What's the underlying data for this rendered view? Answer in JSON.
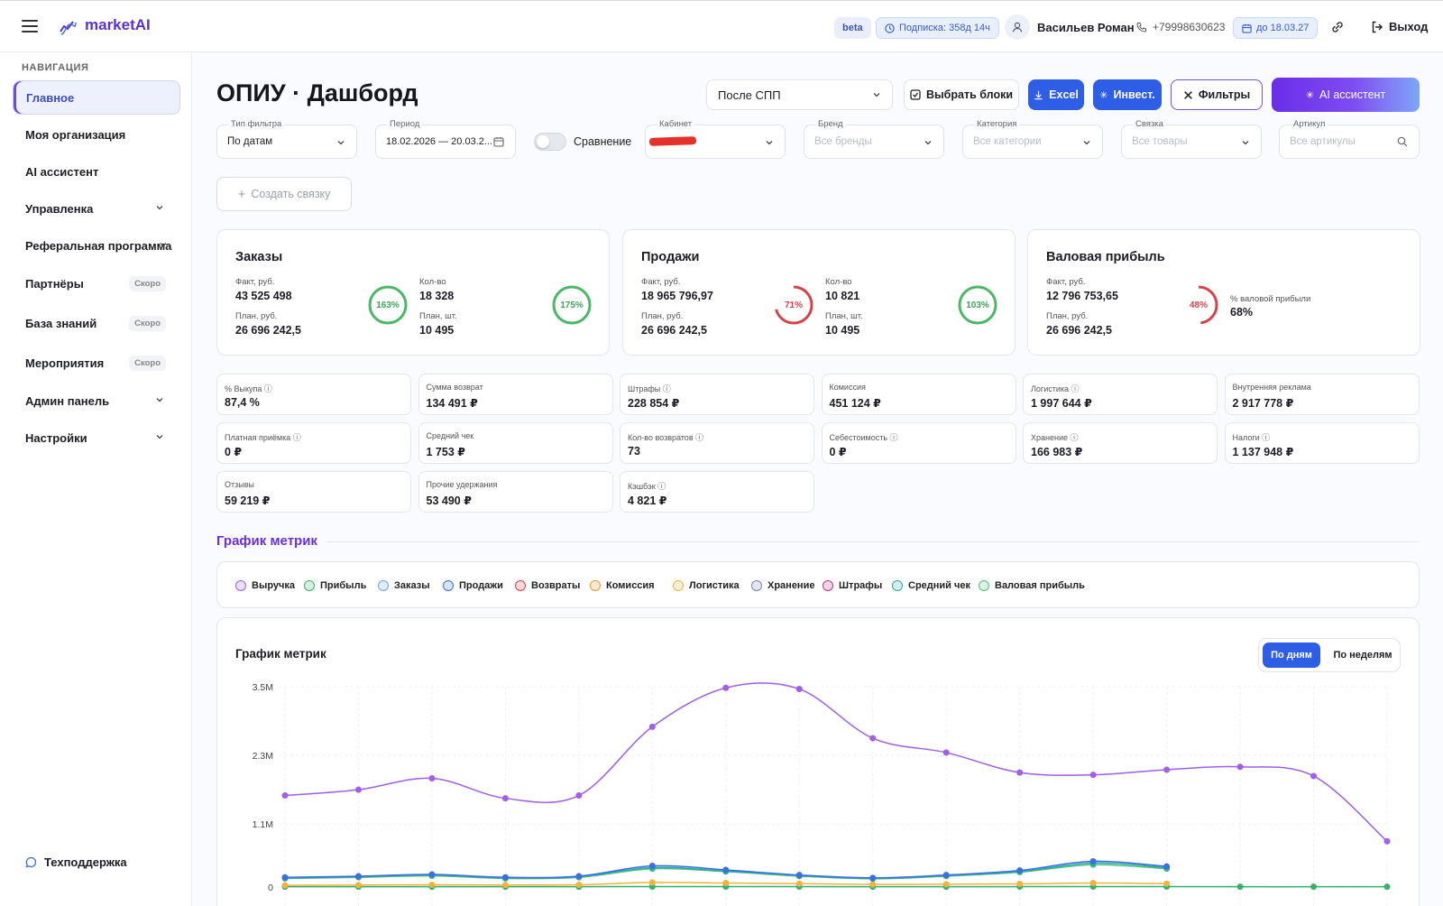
{
  "header": {
    "logo": "marketAI",
    "beta": "beta",
    "subscription": "Подписка: 358д 14ч",
    "user": "Васильев Роман",
    "phone": "+79998630623",
    "until": "до 18.03.27",
    "logout": "Выход"
  },
  "sidebar": {
    "title": "НАВИГАЦИЯ",
    "items": [
      {
        "label": "Главное",
        "active": true
      },
      {
        "label": "Моя организация"
      },
      {
        "label": "AI ассистент"
      },
      {
        "label": "Управленка",
        "expand": true
      },
      {
        "label": "Реферальная программа",
        "expand": true
      },
      {
        "label": "Партнёры",
        "badge": "Скоро"
      },
      {
        "label": "База знаний",
        "badge": "Скоро"
      },
      {
        "label": "Мероприятия",
        "badge": "Скоро"
      },
      {
        "label": "Админ панель",
        "expand": true
      },
      {
        "label": "Настройки",
        "expand": true
      }
    ],
    "support": "Техподдержка"
  },
  "page": {
    "title": "ОПИУ · Дашборд",
    "spp_select": "После СПП",
    "btn_blocks": "Выбрать блоки",
    "btn_excel": "Excel",
    "btn_invest": "Инвест.",
    "btn_filters": "Фильтры",
    "btn_ai": "AI ассистент",
    "btn_create": "Создать связку"
  },
  "filters": {
    "type": {
      "label": "Тип фильтра",
      "value": "По датам"
    },
    "period": {
      "label": "Период",
      "value": "18.02.2026 — 20.03.2..."
    },
    "compare": "Сравнение",
    "cabinet": {
      "label": "Кабинет"
    },
    "brand": {
      "label": "Бренд",
      "placeholder": "Все бренды"
    },
    "category": {
      "label": "Категория",
      "placeholder": "Все категории"
    },
    "link": {
      "label": "Связка",
      "placeholder": "Все товары"
    },
    "article": {
      "label": "Артикул",
      "placeholder": "Все артикулы"
    }
  },
  "kpis": {
    "orders": {
      "title": "Заказы",
      "fact_label": "Факт, руб.",
      "fact": "43 525 498",
      "plan_label": "План, руб.",
      "plan": "26 696 242,5",
      "pct1": "163%",
      "pct1_value": 163,
      "qty_label": "Кол-во",
      "qty": "18 328",
      "qplan_label": "План, шт.",
      "qplan": "10 495",
      "pct2": "175%",
      "pct2_value": 175
    },
    "sales": {
      "title": "Продажи",
      "fact_label": "Факт, руб.",
      "fact": "18 965 796,97",
      "plan_label": "План, руб.",
      "plan": "26 696 242,5",
      "pct1": "71%",
      "pct1_value": 71,
      "qty_label": "Кол-во",
      "qty": "10 821",
      "qplan_label": "План, шт.",
      "qplan": "10 495",
      "pct2": "103%",
      "pct2_value": 103
    },
    "gross": {
      "title": "Валовая прибыль",
      "fact_label": "Факт, руб.",
      "fact": "12 796 753,65",
      "plan_label": "План, руб.",
      "plan": "26 696 242,5",
      "pct1": "48%",
      "pct1_value": 48,
      "margin_label": "% валовой прибыли",
      "margin": "68%"
    }
  },
  "tiles": [
    {
      "label": "% Выкупа ⓘ",
      "value": "87,4 %"
    },
    {
      "label": "Сумма возврат",
      "value": "134 491 ₽"
    },
    {
      "label": "Штрафы ⓘ",
      "value": "228 854 ₽"
    },
    {
      "label": "Комиссия",
      "value": "451 124 ₽"
    },
    {
      "label": "Логистика ⓘ",
      "value": "1 997 644 ₽"
    },
    {
      "label": "Внутренняя реклама",
      "value": "2 917 778 ₽"
    },
    {
      "label": "Платная приёмка ⓘ",
      "value": "0 ₽"
    },
    {
      "label": "Средний чек",
      "value": "1 753 ₽"
    },
    {
      "label": "Кол-во возвратов ⓘ",
      "value": "73"
    },
    {
      "label": "Себестоимость ⓘ",
      "value": "0 ₽"
    },
    {
      "label": "Хранение ⓘ",
      "value": "166 983 ₽"
    },
    {
      "label": "Налоги ⓘ",
      "value": "1 137 948 ₽"
    },
    {
      "label": "Отзывы",
      "value": "59 219 ₽"
    },
    {
      "label": "Прочие удержания",
      "value": "53 490 ₽"
    },
    {
      "label": "Кэшбэк ⓘ",
      "value": "4 821 ₽"
    }
  ],
  "metrics_section": {
    "title": "График метрик",
    "legend": [
      {
        "name": "Выручка",
        "color": "#a15ee8"
      },
      {
        "name": "Прибыль",
        "color": "#35b26a"
      },
      {
        "name": "Заказы",
        "color": "#6aa3ea"
      },
      {
        "name": "Продажи",
        "color": "#3a6fe0"
      },
      {
        "name": "Возвраты",
        "color": "#d9414a"
      },
      {
        "name": "Комиссия",
        "color": "#f0952e"
      },
      {
        "name": "Логистика",
        "color": "#f1b33c"
      },
      {
        "name": "Хранение",
        "color": "#7a84b8"
      },
      {
        "name": "Штрафы",
        "color": "#c0368a"
      },
      {
        "name": "Средний чек",
        "color": "#2fa7a9"
      },
      {
        "name": "Валовая прибыль",
        "color": "#4ec07a"
      }
    ],
    "chart_title": "График метрик",
    "toggle_days": "По дням",
    "toggle_weeks": "По неделям"
  },
  "chart_data": {
    "type": "line",
    "ylim": [
      0,
      3500000
    ],
    "yticks": [
      "3.5M",
      "2.3M",
      "1.1M",
      "0"
    ],
    "ytick_values": [
      3500000,
      2300000,
      1100000,
      0
    ],
    "series": [
      {
        "name": "Выручка",
        "color": "#a15ee8",
        "values": [
          1600000,
          1700000,
          1900000,
          1550000,
          1600000,
          2800000,
          3480000,
          3460000,
          2600000,
          2350000,
          2000000,
          1960000,
          2050000,
          2100000,
          1940000,
          800000
        ]
      },
      {
        "name": "Заказы",
        "color": "#3a6fe0",
        "values": [
          170000,
          190000,
          220000,
          170000,
          190000,
          370000,
          300000,
          210000,
          160000,
          210000,
          290000,
          450000,
          360000
        ]
      },
      {
        "name": "Средний чек",
        "color": "#2fa7a9",
        "values": [
          160000,
          180000,
          210000,
          160000,
          180000,
          340000,
          280000,
          200000,
          150000,
          200000,
          270000,
          420000,
          340000
        ]
      },
      {
        "name": "Валовая прибыль",
        "color": "#4ec07a",
        "values": [
          150000,
          170000,
          195000,
          150000,
          170000,
          320000,
          270000,
          190000,
          145000,
          190000,
          260000,
          390000,
          320000
        ]
      },
      {
        "name": "Логистика",
        "color": "#f1b33c",
        "values": [
          30000,
          35000,
          40000,
          35000,
          40000,
          80000,
          70000,
          60000,
          45000,
          50000,
          55000,
          70000,
          60000
        ]
      },
      {
        "name": "Прибыль",
        "color": "#35b26a",
        "values": [
          5000,
          6000,
          6000,
          5000,
          6000,
          8000,
          8000,
          7000,
          6000,
          6000,
          7000,
          8000,
          7000,
          5000,
          5000,
          5000
        ]
      }
    ]
  }
}
